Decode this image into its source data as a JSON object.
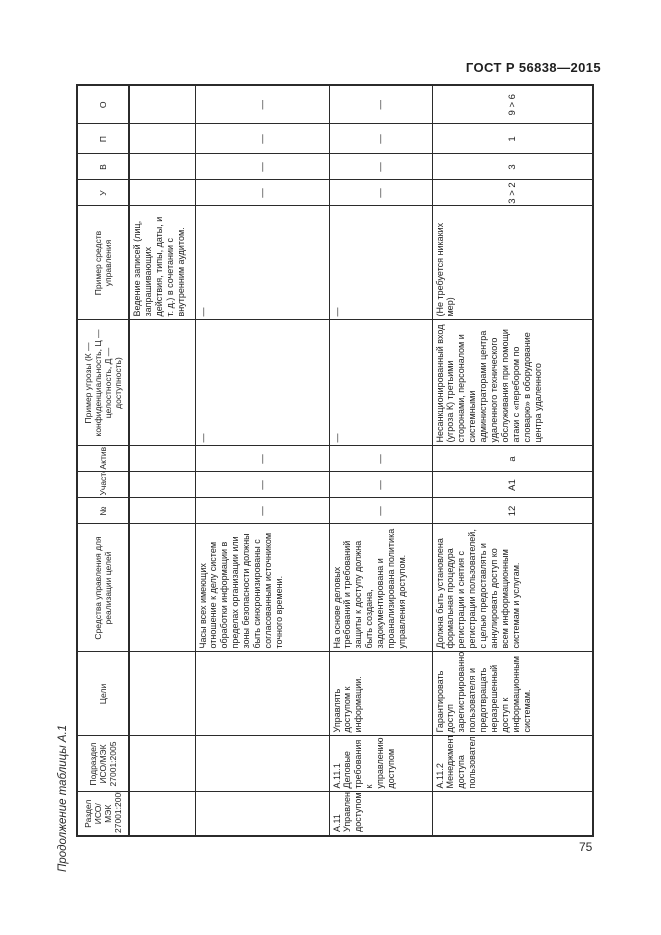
{
  "page": {
    "doc_header": "ГОСТ Р 56838—2015",
    "table_caption": "Продолжение таблицы А.1",
    "page_number": "75"
  },
  "colors": {
    "background": "#ffffff",
    "text": "#1f1f1f",
    "border": "#2b2b2b"
  },
  "table": {
    "headers": [
      "Раздел ИСО/МЭК 27001:2005",
      "Подраздел ИСО/МЭК 27001:2005",
      "Цели",
      "Средства управления для реализации целей",
      "№",
      "Участок",
      "Актив",
      "Пример угрозы (К — конфиденциальность, Ц — целостность, Д — доступность)",
      "Пример средств управления",
      "У",
      "В",
      "П",
      "О"
    ],
    "rows": [
      [
        "",
        "",
        "",
        "",
        "",
        "",
        "",
        "",
        "Ведение записей (лиц, запрашивающих действия, типы, даты, и т. д.) в сочетании с внутренним аудитом.",
        "",
        "",
        "",
        ""
      ],
      [
        "",
        "",
        "",
        "Часы всех имеющих отношение к делу систем обработки информации в пределах организации или зоны безопасности должны быть синхронизированы с согласованным источником точного времени.",
        "—",
        "—",
        "—",
        "—",
        "—",
        "—",
        "—",
        "—",
        "—"
      ],
      [
        "А.11 Управление доступом",
        "А.11.1 Деловые требования к управлению доступом",
        "Управлять доступом к информации.",
        "На основе деловых требований и требований защиты к доступу должна быть создана, задокументирована и проанализирована политика управления доступом.",
        "—",
        "—",
        "—",
        "—",
        "—",
        "—",
        "—",
        "—",
        "—"
      ],
      [
        "",
        "А.11.2 Менеджмент доступа пользователей",
        "Гарантировать доступ зарегистрированного пользователя и предотвращать неразрешенный доступ к информационным системам.",
        "Должна быть установлена формальная процедура регистрации и снятия с регистрации пользователей, с целью предоставлять и аннулировать доступ ко всем информационным системам и услугам.",
        "12",
        "А1",
        "а",
        "Несанкционированный вход (угроза К) третьими сторонами, персоналом и системными администраторами центра удаленного технического обслуживания при помощи атаки с «перебором по словарю» в оборудование центра удаленного",
        "(Не требуется никаких мер)",
        "3 > 2",
        "3",
        "1",
        "9 > 6"
      ]
    ]
  }
}
